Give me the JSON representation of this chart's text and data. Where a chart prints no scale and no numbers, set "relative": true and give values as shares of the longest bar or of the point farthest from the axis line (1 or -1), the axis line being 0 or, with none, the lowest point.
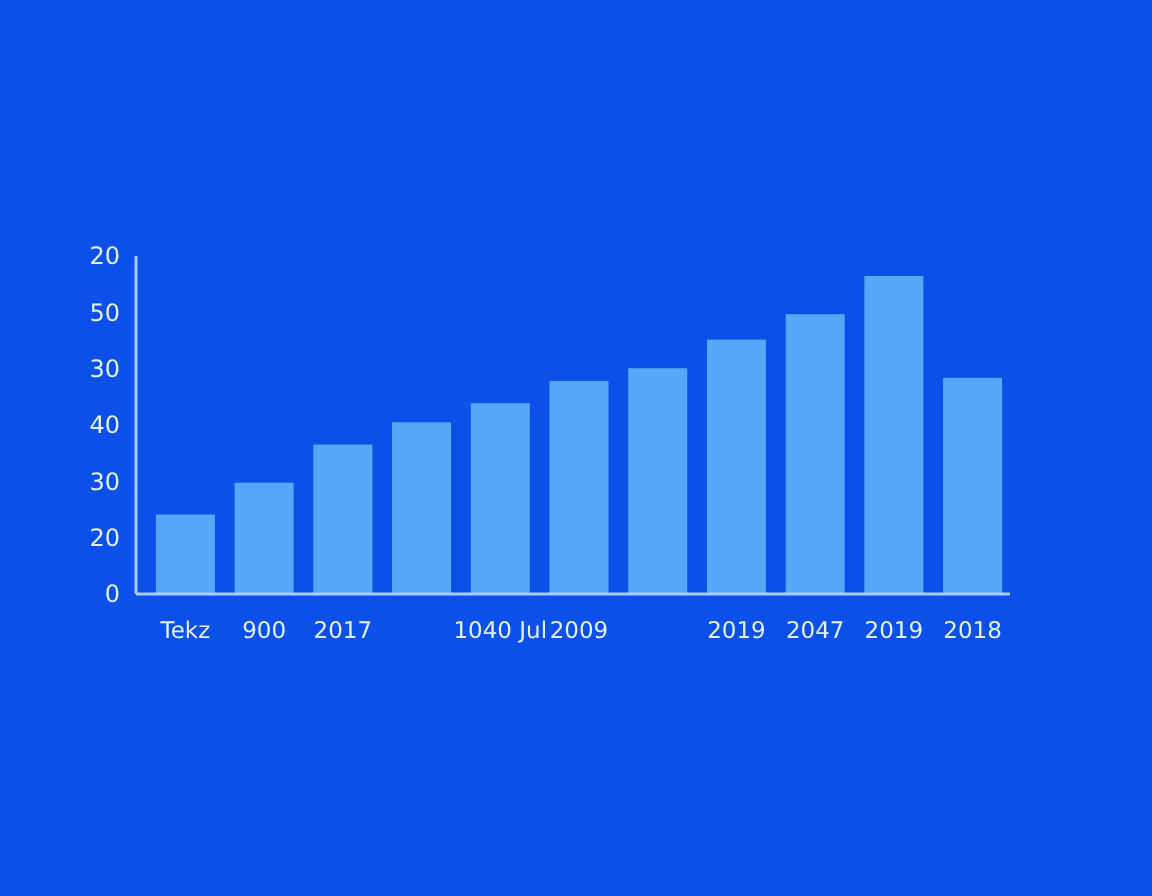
{
  "chart_data": {
    "type": "bar",
    "relative": true,
    "categories": [
      "Tekz",
      "900",
      "2017",
      null,
      "1040 Jul",
      "2009",
      null,
      "2019",
      "2047",
      "2019",
      "2018"
    ],
    "values": [
      0.25,
      0.35,
      0.47,
      0.54,
      0.6,
      0.67,
      0.71,
      0.8,
      0.88,
      1,
      0.68
    ],
    "color": "#55a8fb",
    "annotations": [
      "0",
      "20",
      "30",
      "40",
      "30",
      "50",
      "20"
    ]
  }
}
